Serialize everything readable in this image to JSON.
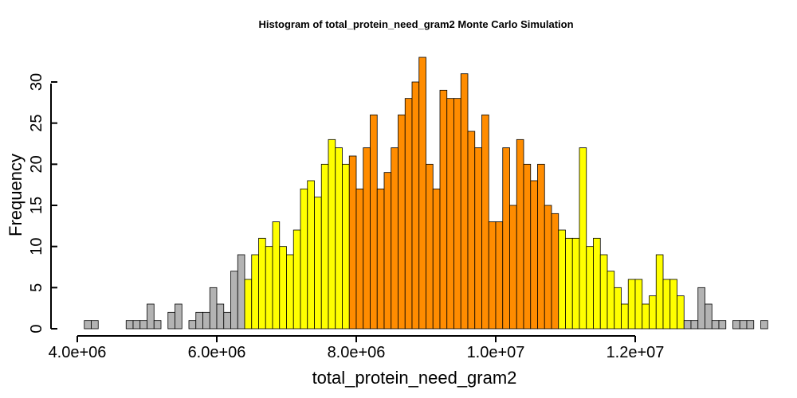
{
  "chart_data": {
    "type": "bar",
    "title": "Histogram of  total_protein_need_gram2  Monte Carlo Simulation",
    "xlabel": "total_protein_need_gram2",
    "ylabel": "Frequency",
    "bin_start": 4100000,
    "bin_width": 100000,
    "xlim": [
      4000000,
      13700000
    ],
    "ylim": [
      0,
      33
    ],
    "x_ticks": [
      {
        "value": 4000000,
        "label": "4.0e+06"
      },
      {
        "value": 6000000,
        "label": "6.0e+06"
      },
      {
        "value": 8000000,
        "label": "8.0e+06"
      },
      {
        "value": 10000000,
        "label": "1.0e+07"
      },
      {
        "value": 12000000,
        "label": "1.2e+07"
      }
    ],
    "y_ticks": [
      {
        "value": 0,
        "label": "0"
      },
      {
        "value": 5,
        "label": "5"
      },
      {
        "value": 10,
        "label": "10"
      },
      {
        "value": 15,
        "label": "15"
      },
      {
        "value": 20,
        "label": "20"
      },
      {
        "value": 25,
        "label": "25"
      },
      {
        "value": 30,
        "label": "30"
      }
    ],
    "grid": false,
    "colors": {
      "gray": "#b3b3b3",
      "yellow": "#ffff00",
      "orange": "#ff8c00",
      "green": "#0f4a00"
    },
    "values": [
      1,
      1,
      0,
      0,
      0,
      0,
      1,
      1,
      1,
      3,
      1,
      0,
      2,
      3,
      0,
      1,
      2,
      2,
      5,
      3,
      2,
      7,
      9,
      6,
      9,
      11,
      10,
      13,
      10,
      9,
      12,
      17,
      18,
      16,
      20,
      23,
      22,
      20,
      21,
      17,
      22,
      26,
      17,
      19,
      22,
      26,
      28,
      30,
      33,
      20,
      17,
      29,
      28,
      28,
      31,
      24,
      22,
      26,
      13,
      13,
      22,
      15,
      23,
      20,
      18,
      20,
      15,
      14,
      12,
      11,
      11,
      22,
      10,
      11,
      9,
      7,
      5,
      3,
      6,
      6,
      3,
      4,
      9,
      6,
      6,
      4,
      1,
      1,
      5,
      3,
      1,
      1,
      0,
      1,
      1,
      1,
      0,
      1
    ],
    "bin_colors": [
      "gray",
      "gray",
      "gray",
      "gray",
      "gray",
      "gray",
      "gray",
      "gray",
      "gray",
      "gray",
      "gray",
      "gray",
      "gray",
      "gray",
      "gray",
      "gray",
      "gray",
      "gray",
      "gray",
      "gray",
      "gray",
      "gray",
      "gray",
      "yellow",
      "yellow",
      "yellow",
      "yellow",
      "yellow",
      "yellow",
      "yellow",
      "yellow",
      "yellow",
      "yellow",
      "yellow",
      "yellow",
      "yellow",
      "yellow",
      "yellow",
      "orange",
      "orange",
      "orange",
      "orange",
      "orange",
      "orange",
      "orange",
      "orange",
      "orange",
      "orange",
      "orange",
      "orange",
      "orange",
      "orange",
      "orange",
      "orange",
      "orange",
      "orange",
      "orange",
      "orange",
      "orange",
      "orange",
      "orange",
      "orange",
      "orange",
      "orange",
      "orange",
      "orange",
      "orange",
      "orange",
      "yellow",
      "yellow",
      "yellow",
      "yellow",
      "yellow",
      "yellow",
      "yellow",
      "yellow",
      "yellow",
      "yellow",
      "yellow",
      "yellow",
      "yellow",
      "yellow",
      "yellow",
      "yellow",
      "yellow",
      "yellow",
      "gray",
      "gray",
      "gray",
      "gray",
      "gray",
      "gray",
      "gray",
      "gray",
      "gray",
      "gray",
      "gray",
      "gray"
    ]
  }
}
